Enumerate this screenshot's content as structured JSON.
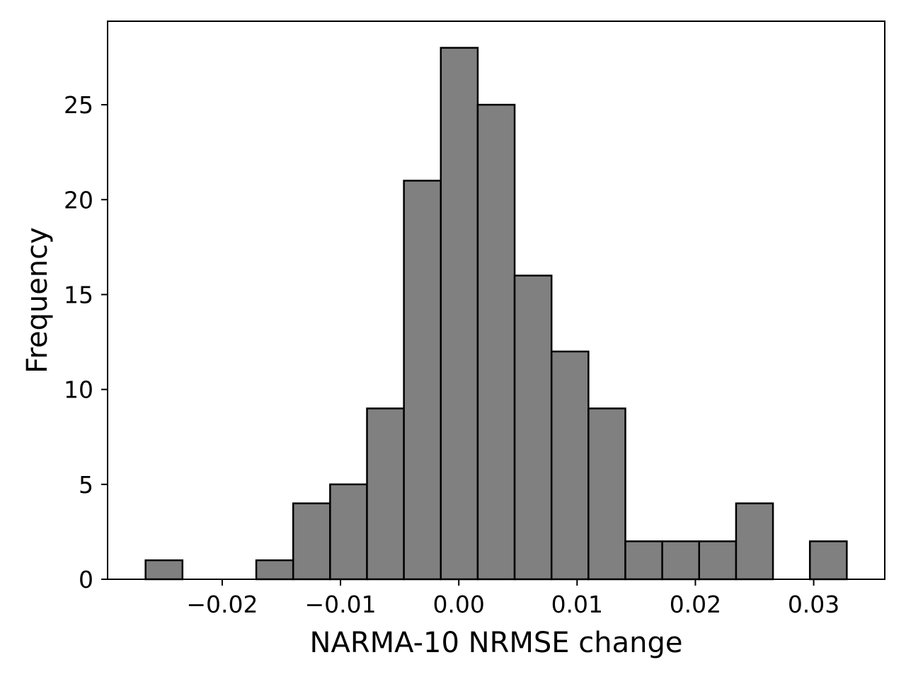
{
  "chart_data": {
    "type": "bar",
    "subtype": "histogram",
    "title": "",
    "xlabel": "NARMA-10 NRMSE change",
    "ylabel": "Frequency",
    "bin_edges": [
      -0.02648,
      -0.02336,
      -0.02024,
      -0.01712,
      -0.014,
      -0.01088,
      -0.00776,
      -0.00464,
      -0.00152,
      0.0016,
      0.00472,
      0.00784,
      0.01096,
      0.01408,
      0.0172,
      0.02032,
      0.02344,
      0.02656,
      0.02968,
      0.0328
    ],
    "values": [
      1,
      0,
      0,
      1,
      4,
      5,
      9,
      21,
      28,
      25,
      16,
      12,
      9,
      2,
      2,
      2,
      4,
      0,
      2
    ],
    "xlim": [
      -0.02969,
      0.03601
    ],
    "ylim": [
      0,
      29.4
    ],
    "xticks": [
      {
        "value": -0.02,
        "label": "−0.02"
      },
      {
        "value": -0.01,
        "label": "−0.01"
      },
      {
        "value": 0.0,
        "label": "0.00"
      },
      {
        "value": 0.01,
        "label": "0.01"
      },
      {
        "value": 0.02,
        "label": "0.02"
      },
      {
        "value": 0.03,
        "label": "0.03"
      }
    ],
    "yticks": [
      {
        "value": 0,
        "label": "0"
      },
      {
        "value": 5,
        "label": "5"
      },
      {
        "value": 10,
        "label": "10"
      },
      {
        "value": 15,
        "label": "15"
      },
      {
        "value": 20,
        "label": "20"
      },
      {
        "value": 25,
        "label": "25"
      }
    ],
    "grid": false,
    "legend": "none",
    "bar_color": "#808080",
    "edge_color": "#000000"
  }
}
